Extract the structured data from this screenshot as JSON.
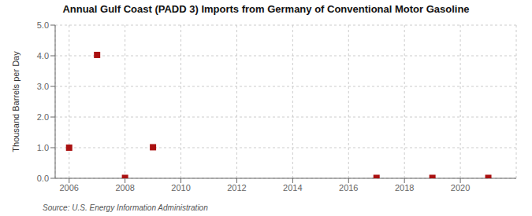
{
  "chart_data": {
    "type": "scatter",
    "title": "Annual Gulf Coast (PADD 3) Imports from Germany of Conventional Motor Gasoline",
    "y_label": "Thousand Barrels per Day",
    "annotations": [
      "Source: U.S. Energy Information Administration"
    ],
    "x": [
      2006,
      2007,
      2008,
      2009,
      2017,
      2019,
      2021
    ],
    "values": [
      1.0,
      4.027,
      0.014,
      1.014,
      0.014,
      0.014,
      0.014
    ],
    "color": "#aa1111",
    "marker": "square",
    "xlim": [
      2005.5,
      2022.0
    ],
    "xticks": [
      2006,
      2008,
      2010,
      2012,
      2014,
      2016,
      2018,
      2020
    ],
    "ylim": [
      0.0,
      5.0
    ],
    "yticks": [
      {
        "value": 0.0,
        "label": "0.0"
      },
      {
        "value": 1.0,
        "label": "1.0"
      },
      {
        "value": 2.0,
        "label": "2.0"
      },
      {
        "value": 3.0,
        "label": "3.0"
      },
      {
        "value": 4.0,
        "label": "4.0"
      },
      {
        "value": 5.0,
        "label": "5.0"
      }
    ],
    "grid": true
  }
}
